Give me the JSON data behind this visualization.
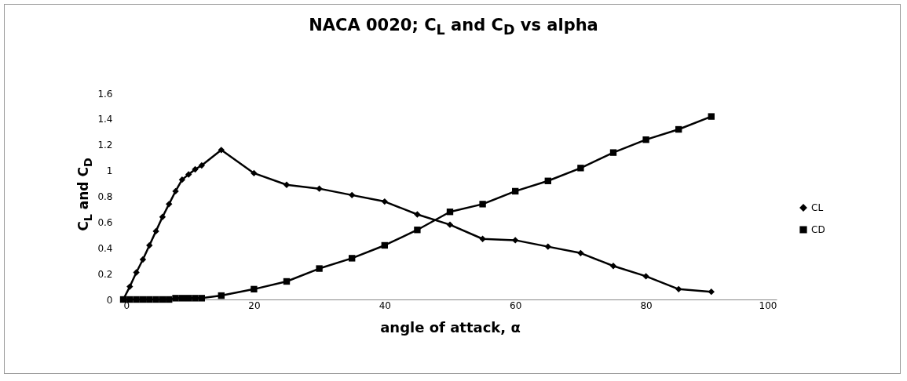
{
  "chart_data": {
    "type": "line",
    "title": "NACA 0020; C$_{L}$ and C$_{D}$ vs alpha",
    "xlabel": "angle of attack, α",
    "ylabel": "C$_{L}$ and C$_{D}$",
    "x": [
      0,
      1,
      2,
      3,
      4,
      5,
      6,
      7,
      8,
      9,
      10,
      11,
      12,
      15,
      20,
      25,
      30,
      35,
      40,
      45,
      50,
      55,
      60,
      65,
      70,
      75,
      80,
      85,
      90
    ],
    "series": [
      {
        "name": "CL",
        "color": "#000000",
        "marker": "diamond",
        "values": [
          0,
          0.1,
          0.21,
          0.31,
          0.42,
          0.53,
          0.64,
          0.74,
          0.84,
          0.93,
          0.97,
          1.01,
          1.04,
          1.16,
          0.98,
          0.89,
          0.86,
          0.81,
          0.76,
          0.66,
          0.58,
          0.47,
          0.46,
          0.41,
          0.36,
          0.26,
          0.18,
          0.08,
          0.06
        ]
      },
      {
        "name": "CD",
        "color": "#000000",
        "marker": "square",
        "values": [
          0,
          0,
          0,
          0,
          0,
          0,
          0,
          0,
          0.01,
          0.01,
          0.01,
          0.01,
          0.01,
          0.03,
          0.08,
          0.14,
          0.24,
          0.32,
          0.42,
          0.54,
          0.68,
          0.74,
          0.84,
          0.92,
          1.02,
          1.14,
          1.24,
          1.32,
          1.42
        ]
      }
    ],
    "xlim": [
      0,
      100
    ],
    "xticks": [
      0,
      20,
      40,
      60,
      80,
      100
    ],
    "ylim": [
      0,
      1.6
    ],
    "yticks": [
      0,
      0.2,
      0.4,
      0.6,
      0.8,
      1,
      1.2,
      1.4,
      1.6
    ],
    "legend": "right",
    "line_style": "solid"
  }
}
